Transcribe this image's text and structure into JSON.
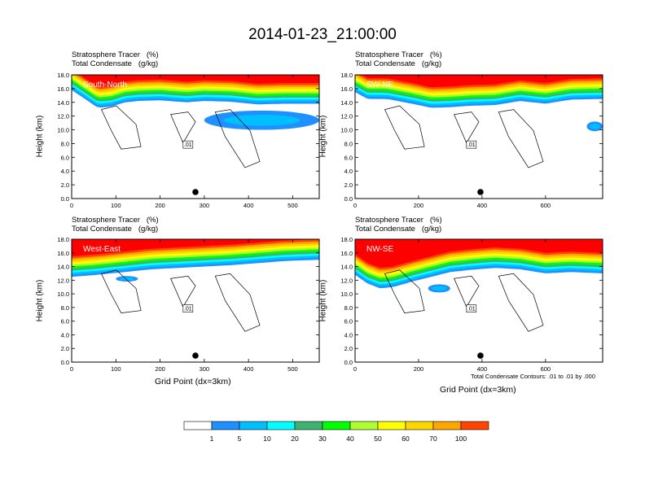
{
  "title": "2014-01-23_21:00:00",
  "panel_title_line1": "Stratosphere Tracer   (%)",
  "panel_title_line2": "Total Condensate   (g/kg)",
  "y_axis_label": "Height (km)",
  "x_axis_label": "Grid Point (dx=3km)",
  "contour_note": "Total Condensate Contours: .01 to .01 by .000",
  "contour_label": ".01",
  "colors": {
    "levels": [
      "#ffffff",
      "#1e90ff",
      "#00bfff",
      "#00ffff",
      "#3cb371",
      "#00ff00",
      "#adff2f",
      "#ffff00",
      "#ffd700",
      "#ffa500",
      "#ff4500",
      "#ff0000"
    ],
    "panel_label_text": "#ffffff"
  },
  "colorbar": {
    "labels": [
      "1",
      "5",
      "10",
      "20",
      "30",
      "40",
      "50",
      "60",
      "70",
      "100"
    ]
  },
  "chart_data": [
    {
      "type": "heatmap",
      "name": "South-North",
      "y_ticks": [
        "0.0",
        "2.0",
        "4.0",
        "6.0",
        "8.0",
        "10.0",
        "12.0",
        "14.0",
        "16.0",
        "18.0"
      ],
      "x_ticks": [
        "0",
        "100",
        "200",
        "300",
        "400",
        "500"
      ],
      "xlim": [
        0,
        560
      ],
      "ylim": [
        0,
        18
      ],
      "marker_x": 280,
      "tracer_bottom_km": [
        [
          0,
          15.8
        ],
        [
          30,
          14.5
        ],
        [
          60,
          13.2
        ],
        [
          90,
          13.4
        ],
        [
          120,
          14.0
        ],
        [
          150,
          14.2
        ],
        [
          200,
          14.3
        ],
        [
          260,
          14.0
        ],
        [
          300,
          14.2
        ],
        [
          360,
          14.1
        ],
        [
          420,
          13.7
        ],
        [
          480,
          13.8
        ],
        [
          560,
          13.8
        ]
      ],
      "blob": {
        "x": [
          300,
          560
        ],
        "y": [
          10.0,
          12.8
        ]
      }
    },
    {
      "type": "heatmap",
      "name": "SW-NE",
      "y_ticks": [
        "0.0",
        "2.0",
        "4.0",
        "6.0",
        "8.0",
        "10.0",
        "12.0",
        "14.0",
        "16.0",
        "18.0"
      ],
      "x_ticks": [
        "0",
        "200",
        "400",
        "600"
      ],
      "xlim": [
        0,
        780
      ],
      "ylim": [
        0,
        18
      ],
      "marker_x": 395,
      "tracer_bottom_km": [
        [
          0,
          15.5
        ],
        [
          40,
          14.5
        ],
        [
          100,
          14.5
        ],
        [
          180,
          13.8
        ],
        [
          240,
          13.2
        ],
        [
          300,
          13.3
        ],
        [
          360,
          13.5
        ],
        [
          440,
          13.6
        ],
        [
          520,
          14.2
        ],
        [
          600,
          13.8
        ],
        [
          680,
          14.4
        ],
        [
          780,
          14.5
        ]
      ],
      "blob": {
        "x": [
          730,
          780
        ],
        "y": [
          9.8,
          11.2
        ]
      }
    },
    {
      "type": "heatmap",
      "name": "West-East",
      "y_ticks": [
        "0.0",
        "2.0",
        "4.0",
        "6.0",
        "8.0",
        "10.0",
        "12.0",
        "14.0",
        "16.0",
        "18.0"
      ],
      "x_ticks": [
        "0",
        "100",
        "200",
        "300",
        "400",
        "500"
      ],
      "xlim": [
        0,
        560
      ],
      "ylim": [
        0,
        18
      ],
      "marker_x": 280,
      "tracer_bottom_km": [
        [
          0,
          12.5
        ],
        [
          60,
          12.8
        ],
        [
          120,
          13.2
        ],
        [
          180,
          13.6
        ],
        [
          240,
          13.8
        ],
        [
          300,
          14.0
        ],
        [
          360,
          14.2
        ],
        [
          420,
          14.5
        ],
        [
          480,
          14.8
        ],
        [
          560,
          15.0
        ]
      ],
      "blob": {
        "x": [
          100,
          150
        ],
        "y": [
          11.8,
          12.6
        ]
      }
    },
    {
      "type": "heatmap",
      "name": "NW-SE",
      "y_ticks": [
        "0.0",
        "2.0",
        "4.0",
        "6.0",
        "8.0",
        "10.0",
        "12.0",
        "14.0",
        "16.0",
        "18.0"
      ],
      "x_ticks": [
        "0",
        "200",
        "400",
        "600"
      ],
      "xlim": [
        0,
        780
      ],
      "ylim": [
        0,
        18
      ],
      "marker_x": 395,
      "tracer_bottom_km": [
        [
          0,
          12.8
        ],
        [
          40,
          11.5
        ],
        [
          80,
          10.8
        ],
        [
          120,
          11.0
        ],
        [
          180,
          11.8
        ],
        [
          240,
          12.5
        ],
        [
          300,
          13.2
        ],
        [
          360,
          13.5
        ],
        [
          440,
          13.8
        ],
        [
          520,
          13.6
        ],
        [
          600,
          13.0
        ],
        [
          680,
          13.2
        ],
        [
          780,
          13.0
        ]
      ],
      "blob": {
        "x": [
          230,
          300
        ],
        "y": [
          10.2,
          11.4
        ]
      }
    }
  ]
}
